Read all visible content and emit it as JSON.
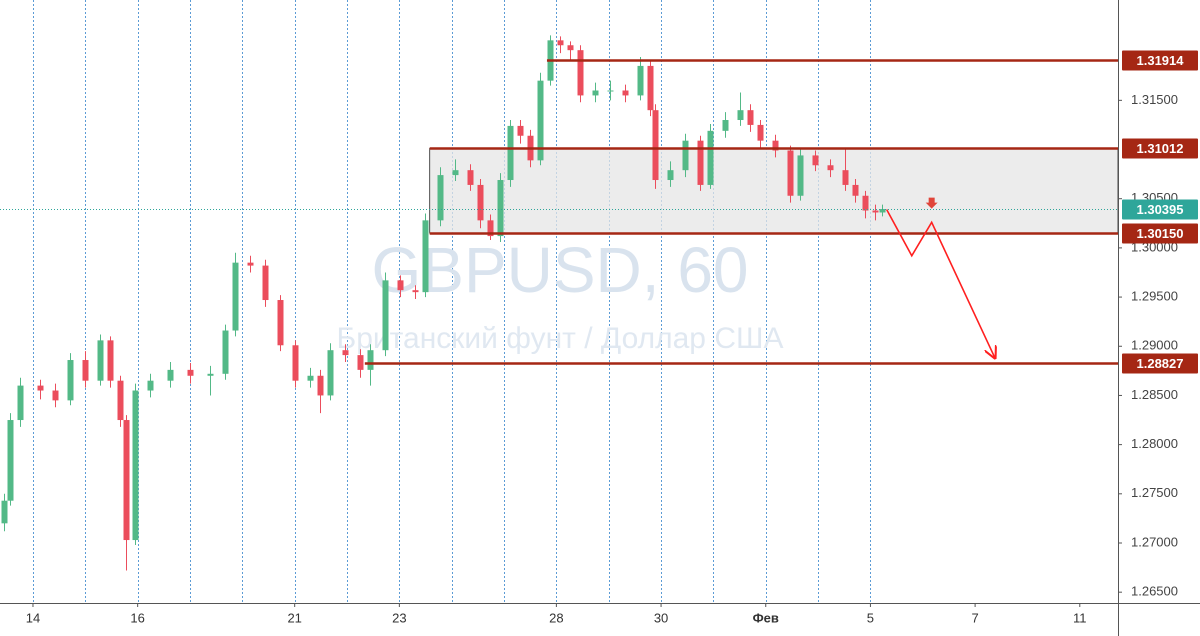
{
  "chart_data": {
    "type": "candlestick",
    "title": "GBPUSD, 60",
    "subtitle": "Британский фунт / Доллар США",
    "up_color": "#53b987",
    "down_color": "#eb4d5c",
    "xlim": [
      -0.63,
      20.73
    ],
    "ylim": [
      1.2639,
      1.3252
    ],
    "xticks": [
      {
        "value": 0,
        "label": "14"
      },
      {
        "value": 2,
        "label": "16"
      },
      {
        "value": 5,
        "label": "21"
      },
      {
        "value": 7,
        "label": "23"
      },
      {
        "value": 10,
        "label": "28"
      },
      {
        "value": 12,
        "label": "30"
      },
      {
        "value": 14,
        "label": "Фев"
      },
      {
        "value": 16,
        "label": "5"
      },
      {
        "value": 18,
        "label": "7"
      },
      {
        "value": 20,
        "label": "11"
      }
    ],
    "xgrid": [
      0,
      1,
      2,
      3,
      4,
      5,
      6,
      7,
      8,
      9,
      10,
      11,
      12,
      13,
      14,
      15,
      16
    ],
    "yticks": [
      {
        "value": 1.315,
        "label": "1.31500"
      },
      {
        "value": 1.305,
        "label": "1.30500"
      },
      {
        "value": 1.3,
        "label": "1.30000"
      },
      {
        "value": 1.295,
        "label": "1.29500"
      },
      {
        "value": 1.29,
        "label": "1.29000"
      },
      {
        "value": 1.285,
        "label": "1.28500"
      },
      {
        "value": 1.28,
        "label": "1.28000"
      },
      {
        "value": 1.275,
        "label": "1.27500"
      },
      {
        "value": 1.27,
        "label": "1.27000"
      },
      {
        "value": 1.265,
        "label": "1.26500"
      }
    ],
    "x": [
      -0.55,
      -0.44,
      -0.25,
      0.13,
      0.42,
      0.71,
      0.99,
      1.28,
      1.47,
      1.66,
      1.78,
      1.95,
      2.23,
      2.62,
      3.0,
      3.38,
      3.67,
      3.86,
      4.15,
      4.43,
      4.72,
      5.0,
      5.29,
      5.48,
      5.67,
      5.96,
      6.25,
      6.44,
      6.72,
      7.01,
      7.3,
      7.49,
      7.77,
      8.06,
      8.35,
      8.54,
      8.73,
      8.92,
      9.11,
      9.3,
      9.49,
      9.68,
      9.88,
      10.07,
      10.26,
      10.45,
      10.74,
      11.02,
      11.31,
      11.6,
      11.79,
      11.88,
      12.17,
      12.45,
      12.74,
      12.93,
      13.22,
      13.51,
      13.7,
      13.89,
      14.17,
      14.46,
      14.65,
      14.94,
      15.22,
      15.51,
      15.7,
      15.89,
      16.08,
      16.22
    ],
    "open": [
      1.272,
      1.2743,
      1.2825,
      1.286,
      1.2855,
      1.2845,
      1.2886,
      1.2865,
      1.2906,
      1.2865,
      1.2825,
      1.2703,
      1.2855,
      1.2865,
      1.2876,
      1.287,
      1.2872,
      1.2916,
      1.2985,
      1.2982,
      1.2947,
      1.2901,
      1.2865,
      1.287,
      1.285,
      1.2896,
      1.2891,
      1.2876,
      1.2896,
      1.2967,
      1.2957,
      1.2955,
      1.3028,
      1.3074,
      1.3079,
      1.3064,
      1.3028,
      1.3012,
      1.3069,
      1.3124,
      1.3114,
      1.3089,
      1.317,
      1.3211,
      1.3206,
      1.3201,
      1.3155,
      1.316,
      1.316,
      1.3155,
      1.3185,
      1.314,
      1.3069,
      1.3079,
      1.3109,
      1.3064,
      1.3119,
      1.313,
      1.314,
      1.3125,
      1.3109,
      1.3099,
      1.3053,
      1.3094,
      1.3084,
      1.3079,
      1.3064,
      1.3053,
      1.3038,
      1.3036
    ],
    "high": [
      1.275,
      1.2832,
      1.2868,
      1.2866,
      1.2862,
      1.2893,
      1.2895,
      1.2912,
      1.291,
      1.287,
      1.283,
      1.2862,
      1.2872,
      1.2884,
      1.2883,
      1.288,
      1.2922,
      1.2995,
      1.2992,
      1.2988,
      1.2952,
      1.2906,
      1.2878,
      1.2876,
      1.2903,
      1.2902,
      1.2897,
      1.2902,
      1.2975,
      1.2972,
      1.2962,
      1.3035,
      1.3082,
      1.309,
      1.3085,
      1.307,
      1.3034,
      1.3076,
      1.313,
      1.313,
      1.312,
      1.3178,
      1.3216,
      1.3215,
      1.321,
      1.3206,
      1.3168,
      1.317,
      1.3166,
      1.3194,
      1.319,
      1.3146,
      1.3088,
      1.3116,
      1.3114,
      1.3126,
      1.3138,
      1.3158,
      1.3146,
      1.313,
      1.3115,
      1.3104,
      1.31,
      1.3099,
      1.309,
      1.31,
      1.307,
      1.3058,
      1.3044,
      1.3044
    ],
    "low": [
      1.2712,
      1.2738,
      1.2818,
      1.2846,
      1.2838,
      1.284,
      1.2858,
      1.286,
      1.2858,
      1.2818,
      1.2672,
      1.2698,
      1.2848,
      1.2858,
      1.2862,
      1.285,
      1.2866,
      1.291,
      1.2975,
      1.294,
      1.2895,
      1.2858,
      1.2858,
      1.2832,
      1.2845,
      1.2884,
      1.2868,
      1.286,
      1.289,
      1.295,
      1.2948,
      1.295,
      1.3022,
      1.3068,
      1.3058,
      1.302,
      1.3008,
      1.3006,
      1.3062,
      1.3106,
      1.3082,
      1.3084,
      1.3165,
      1.3198,
      1.319,
      1.3148,
      1.3148,
      1.315,
      1.3148,
      1.315,
      1.3134,
      1.306,
      1.3062,
      1.3072,
      1.3058,
      1.306,
      1.3112,
      1.3124,
      1.3118,
      1.3102,
      1.3092,
      1.3046,
      1.3048,
      1.3078,
      1.3072,
      1.3058,
      1.3046,
      1.303,
      1.3028,
      1.3032
    ],
    "close": [
      1.2743,
      1.2825,
      1.286,
      1.2855,
      1.2845,
      1.2886,
      1.2865,
      1.2906,
      1.2865,
      1.2825,
      1.2703,
      1.2855,
      1.2865,
      1.2876,
      1.287,
      1.2872,
      1.2916,
      1.2985,
      1.2982,
      1.2947,
      1.2901,
      1.2865,
      1.287,
      1.285,
      1.2896,
      1.2891,
      1.2876,
      1.2896,
      1.2967,
      1.2957,
      1.2955,
      1.3028,
      1.3074,
      1.3079,
      1.3064,
      1.3028,
      1.3012,
      1.3069,
      1.3124,
      1.3114,
      1.3089,
      1.317,
      1.3211,
      1.3206,
      1.3201,
      1.3155,
      1.316,
      1.316,
      1.3155,
      1.3185,
      1.314,
      1.3069,
      1.3079,
      1.3109,
      1.3064,
      1.3119,
      1.313,
      1.314,
      1.3125,
      1.3109,
      1.3099,
      1.3053,
      1.3094,
      1.3084,
      1.3079,
      1.3064,
      1.3053,
      1.3038,
      1.3036,
      1.30395
    ],
    "zone": {
      "from": 1.3015,
      "to": 1.31012,
      "x_start": 7.58
    },
    "levels": [
      {
        "value": 1.31914,
        "label": "1.31914",
        "x_start": 9.82,
        "color": "#a52714",
        "style": "solid"
      },
      {
        "value": 1.31012,
        "label": "1.31012",
        "x_start": 7.58,
        "color": "#a52714",
        "style": "solid"
      },
      {
        "value": 1.30395,
        "label": "1.30395",
        "x_start": -0.63,
        "color": "#2fa69a",
        "style": "dotted"
      },
      {
        "value": 1.3015,
        "label": "1.30150",
        "x_start": 7.58,
        "color": "#a52714",
        "style": "solid"
      },
      {
        "value": 1.28827,
        "label": "1.28827",
        "x_start": 6.34,
        "color": "#a52714",
        "style": "solid"
      }
    ],
    "forecast": {
      "x": [
        16.31,
        16.79,
        17.17,
        18.38
      ],
      "y": [
        1.3039,
        1.2992,
        1.3026,
        1.2888
      ],
      "color": "#ff2020"
    },
    "marker": {
      "x": 17.17,
      "y": 1.3045,
      "color": "#e0453a"
    }
  }
}
